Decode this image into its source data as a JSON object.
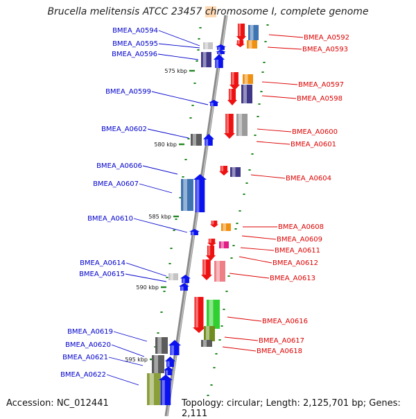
{
  "title": {
    "before": "Brucella melitensis ATCC 23457 ",
    "highlight": "ch",
    "after": "romosome I, complete genome"
  },
  "footer": {
    "accession": "Accession: NC_012441",
    "topology": "Topology: circular; Length: 2,125,701 bp; Genes: 2,111"
  },
  "colors": {
    "left_label": "#0000cc",
    "right_label": "#dd0000",
    "backbone": "#999999",
    "ruler_dot": "#228822"
  },
  "ticks": [
    {
      "label": "575 kbp"
    },
    {
      "label": "580 kbp"
    },
    {
      "label": "585 kbp"
    },
    {
      "label": "590 kbp"
    },
    {
      "label": "595 kbp"
    }
  ],
  "left_genes": [
    {
      "name": "BMEA_A0594"
    },
    {
      "name": "BMEA_A0595"
    },
    {
      "name": "BMEA_A0596"
    },
    {
      "name": "BMEA_A0599"
    },
    {
      "name": "BMEA_A0602"
    },
    {
      "name": "BMEA_A0606"
    },
    {
      "name": "BMEA_A0607"
    },
    {
      "name": "BMEA_A0610"
    },
    {
      "name": "BMEA_A0614"
    },
    {
      "name": "BMEA_A0615"
    },
    {
      "name": "BMEA_A0619"
    },
    {
      "name": "BMEA_A0620"
    },
    {
      "name": "BMEA_A0621"
    },
    {
      "name": "BMEA_A0622"
    }
  ],
  "right_genes": [
    {
      "name": "BMEA_A0592"
    },
    {
      "name": "BMEA_A0593"
    },
    {
      "name": "BMEA_A0597"
    },
    {
      "name": "BMEA_A0598"
    },
    {
      "name": "BMEA_A0600"
    },
    {
      "name": "BMEA_A0601"
    },
    {
      "name": "BMEA_A0604"
    },
    {
      "name": "BMEA_A0608"
    },
    {
      "name": "BMEA_A0609"
    },
    {
      "name": "BMEA_A0611"
    },
    {
      "name": "BMEA_A0612"
    },
    {
      "name": "BMEA_A0613"
    },
    {
      "name": "BMEA_A0616"
    },
    {
      "name": "BMEA_A0617"
    },
    {
      "name": "BMEA_A0618"
    }
  ]
}
